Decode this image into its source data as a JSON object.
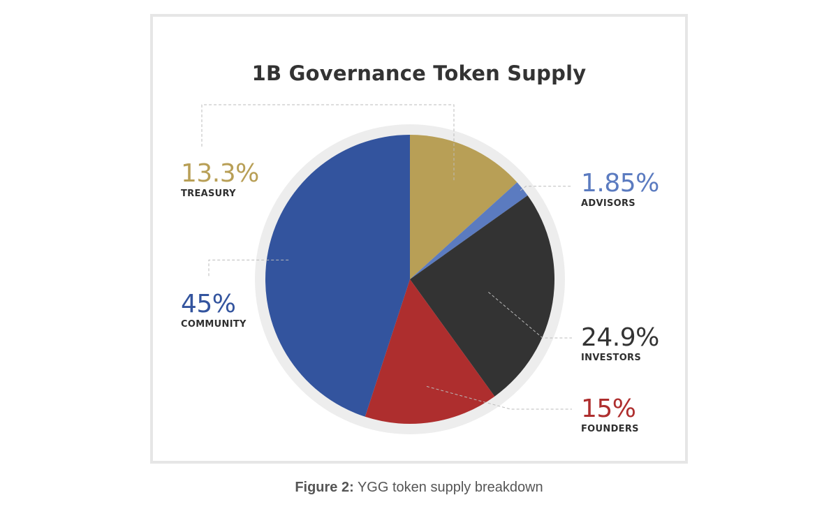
{
  "colors": {
    "treasury": "#B89F56",
    "advisors": "#5B7BC0",
    "investors": "#333333",
    "founders": "#AE2E2E",
    "community": "#33549E",
    "rim": "#EDEDED",
    "leader": "#BBBBBB"
  },
  "chart_data": {
    "type": "pie",
    "title": "1B Governance Token Supply",
    "slices": [
      {
        "label": "TREASURY",
        "value": 13.3,
        "display": "13.3%",
        "color": "#B89F56"
      },
      {
        "label": "ADVISORS",
        "value": 1.85,
        "display": "1.85%",
        "color": "#5B7BC0"
      },
      {
        "label": "INVESTORS",
        "value": 24.9,
        "display": "24.9%",
        "color": "#333333"
      },
      {
        "label": "FOUNDERS",
        "value": 15,
        "display": "15%",
        "color": "#AE2E2E"
      },
      {
        "label": "COMMUNITY",
        "value": 45,
        "display": "45%",
        "color": "#33549E"
      }
    ]
  },
  "caption": {
    "prefix": "Figure 2:",
    "text": " YGG token supply breakdown"
  }
}
